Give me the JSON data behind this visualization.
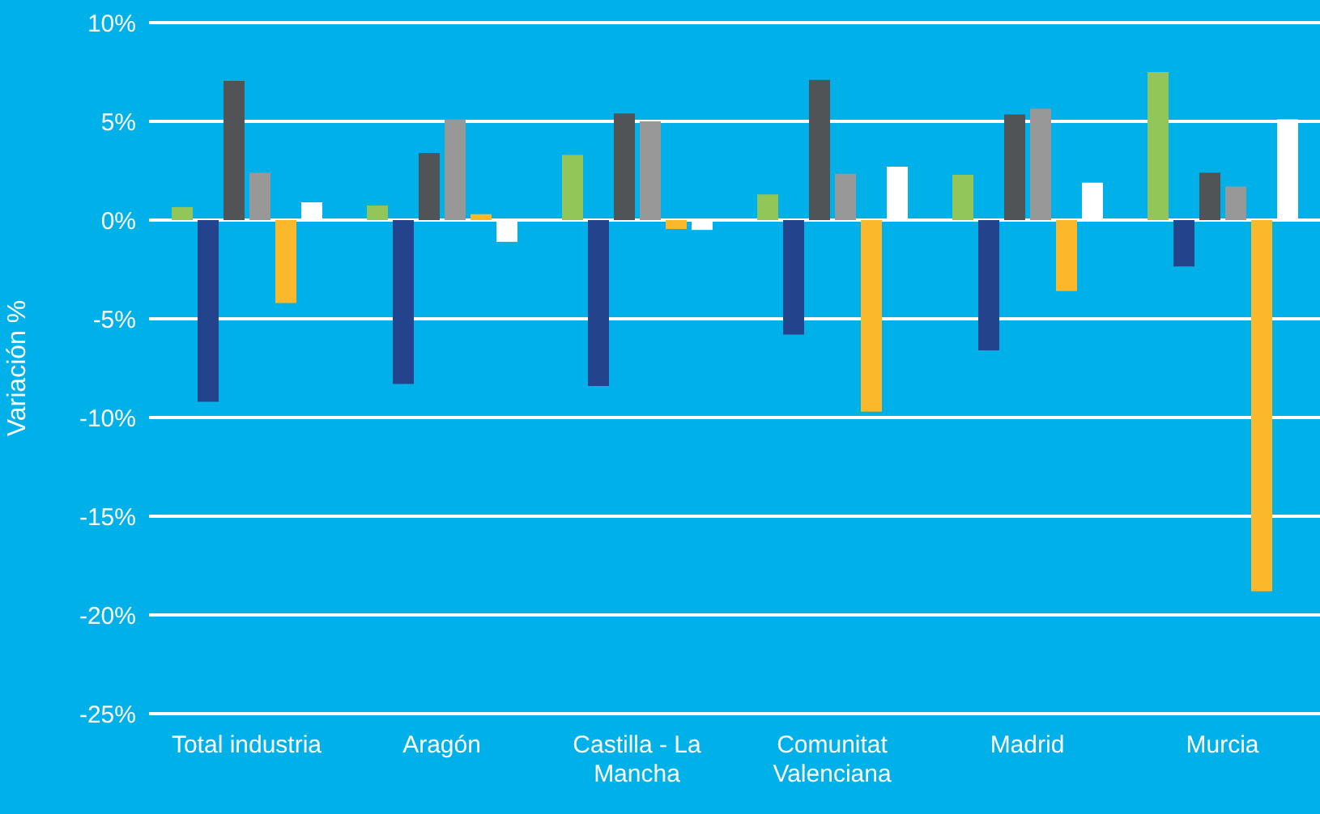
{
  "chart_data": {
    "type": "bar",
    "ylabel": "Variación %",
    "categories": [
      "Total industria",
      "Aragón",
      "Castilla - La Mancha",
      "Comunitat Valenciana",
      "Madrid",
      "Murcia"
    ],
    "series": [
      {
        "color": "#92c659",
        "values": [
          0.66,
          0.74,
          3.3,
          1.3,
          2.3,
          7.5
        ]
      },
      {
        "color": "#23448c",
        "values": [
          -9.2,
          -8.3,
          -8.4,
          -5.8,
          -6.6,
          -2.35
        ]
      },
      {
        "color": "#505456",
        "values": [
          7.05,
          3.4,
          5.4,
          7.1,
          5.35,
          2.4
        ]
      },
      {
        "color": "#989898",
        "values": [
          2.4,
          5.1,
          5.0,
          2.35,
          5.65,
          1.7
        ]
      },
      {
        "color": "#fbb82b",
        "values": [
          -4.2,
          0.3,
          -0.45,
          -9.7,
          -3.6,
          -18.8
        ]
      },
      {
        "color": "#ffffff",
        "values": [
          0.9,
          -1.1,
          -0.5,
          2.7,
          1.9,
          5.1
        ]
      }
    ],
    "ylim": [
      -25,
      10
    ],
    "yticks": [
      {
        "value": -25,
        "label": "-25%"
      },
      {
        "value": -20,
        "label": "-20%"
      },
      {
        "value": -15,
        "label": "-15%"
      },
      {
        "value": -10,
        "label": "-10%"
      },
      {
        "value": -5,
        "label": "-5%"
      },
      {
        "value": 0,
        "label": "0%"
      },
      {
        "value": 5,
        "label": "5%"
      },
      {
        "value": 10,
        "label": "10%"
      }
    ],
    "grid": "y",
    "legend": false
  }
}
